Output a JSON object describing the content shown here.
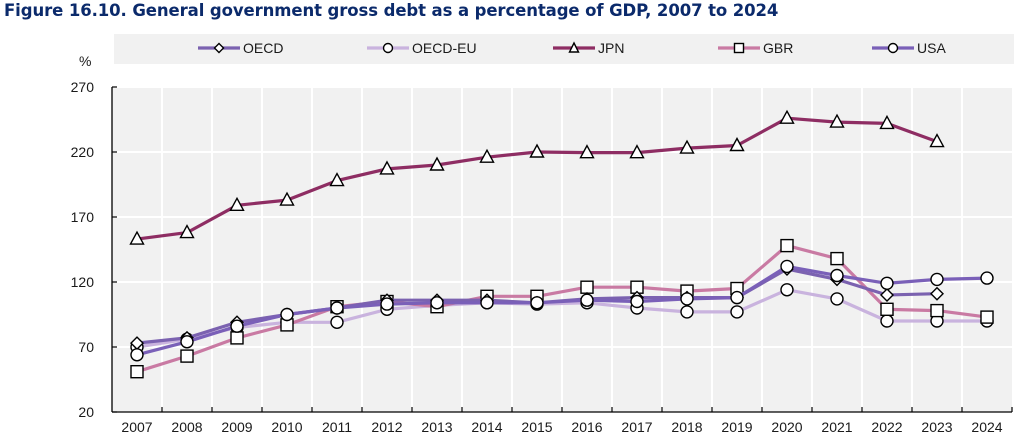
{
  "title": "Figure 16.10. General government gross debt as a percentage of GDP, 2007 to 2024",
  "chart_data": {
    "type": "line",
    "title": "Figure 16.10. General government gross debt as a percentage of GDP, 2007 to 2024",
    "xlabel": "",
    "ylabel": "%",
    "ylim": [
      20,
      270
    ],
    "yticks": [
      20,
      70,
      120,
      170,
      220,
      270
    ],
    "grid": true,
    "legend_position": "top",
    "x": [
      "2007",
      "2008",
      "2009",
      "2010",
      "2011",
      "2012",
      "2013",
      "2014",
      "2015",
      "2016",
      "2017",
      "2018",
      "2019",
      "2020",
      "2021",
      "2022",
      "2023",
      "2024"
    ],
    "series": [
      {
        "name": "OECD",
        "color": "#7b62b0",
        "marker": "diamond",
        "values": [
          73,
          77,
          89,
          95,
          100,
          106,
          106,
          106,
          104,
          107,
          108,
          108,
          108,
          130,
          122,
          110,
          111,
          null
        ]
      },
      {
        "name": "OECD-EU",
        "color": "#c9b3de",
        "marker": "circle",
        "values": [
          70,
          76,
          85,
          89,
          89,
          99,
          102,
          104,
          103,
          104,
          100,
          97,
          97,
          114,
          107,
          90,
          90,
          90
        ]
      },
      {
        "name": "JPN",
        "color": "#8e2d63",
        "marker": "triangle",
        "values": [
          153,
          158,
          179,
          183,
          198,
          207,
          210,
          216,
          220,
          219.5,
          219.5,
          223,
          225,
          246,
          243,
          242,
          228,
          null
        ]
      },
      {
        "name": "GBR",
        "color": "#c97aa3",
        "marker": "square",
        "values": [
          51,
          63,
          77,
          87,
          101,
          105,
          101,
          109,
          109,
          116,
          116,
          113,
          115,
          148,
          138,
          99,
          98,
          93
        ]
      },
      {
        "name": "USA",
        "color": "#7a60b8",
        "marker": "circle",
        "values": [
          64,
          74,
          86,
          95,
          100,
          103,
          104,
          104,
          104,
          106,
          105,
          107,
          108,
          132,
          125,
          119,
          122,
          123
        ]
      }
    ]
  }
}
